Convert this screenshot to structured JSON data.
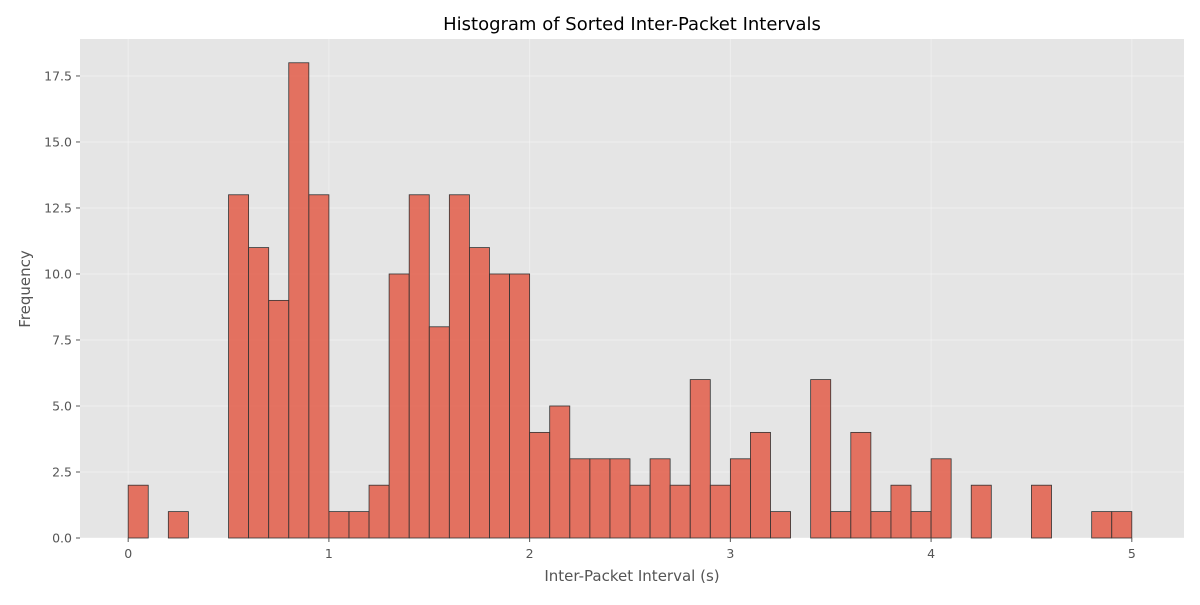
{
  "chart_data": {
    "type": "bar",
    "title": "Histogram of Sorted Inter-Packet Intervals",
    "xlabel": "Inter-Packet Interval (s)",
    "ylabel": "Frequency",
    "xlim": [
      -0.24,
      5.26
    ],
    "ylim": [
      0,
      18.9
    ],
    "bin_width": 0.1,
    "x_ticks": [
      0,
      1,
      2,
      3,
      4,
      5
    ],
    "x_tick_labels": [
      "0",
      "1",
      "2",
      "3",
      "4",
      "5"
    ],
    "y_ticks": [
      0,
      2.5,
      5,
      7.5,
      10,
      12.5,
      15,
      17.5
    ],
    "y_tick_labels": [
      "0.0",
      "2.5",
      "5.0",
      "7.5",
      "10.0",
      "12.5",
      "15.0",
      "17.5"
    ],
    "bin_starts": [
      0.0,
      0.1,
      0.2,
      0.3,
      0.4,
      0.5,
      0.6,
      0.7,
      0.8,
      0.9,
      1.0,
      1.1,
      1.2,
      1.3,
      1.4,
      1.5,
      1.6,
      1.7,
      1.8,
      1.9,
      2.0,
      2.1,
      2.2,
      2.3,
      2.4,
      2.5,
      2.6,
      2.7,
      2.8,
      2.9,
      3.0,
      3.1,
      3.2,
      3.3,
      3.4,
      3.5,
      3.6,
      3.7,
      3.8,
      3.9,
      4.0,
      4.1,
      4.2,
      4.3,
      4.4,
      4.5,
      4.6,
      4.7,
      4.8,
      4.9
    ],
    "values": [
      2,
      0,
      1,
      0,
      0,
      13,
      11,
      9,
      18,
      13,
      1,
      1,
      2,
      10,
      13,
      8,
      13,
      11,
      10,
      10,
      4,
      5,
      3,
      3,
      3,
      2,
      3,
      2,
      6,
      2,
      3,
      4,
      1,
      0,
      6,
      1,
      4,
      1,
      2,
      1,
      3,
      0,
      2,
      0,
      0,
      2,
      0,
      0,
      1,
      1
    ],
    "bar_color": "#e24a33",
    "bar_alpha": 0.75,
    "edge_color": "#333333",
    "background_color": "#e5e5e5",
    "grid": true,
    "style": "ggplot"
  }
}
